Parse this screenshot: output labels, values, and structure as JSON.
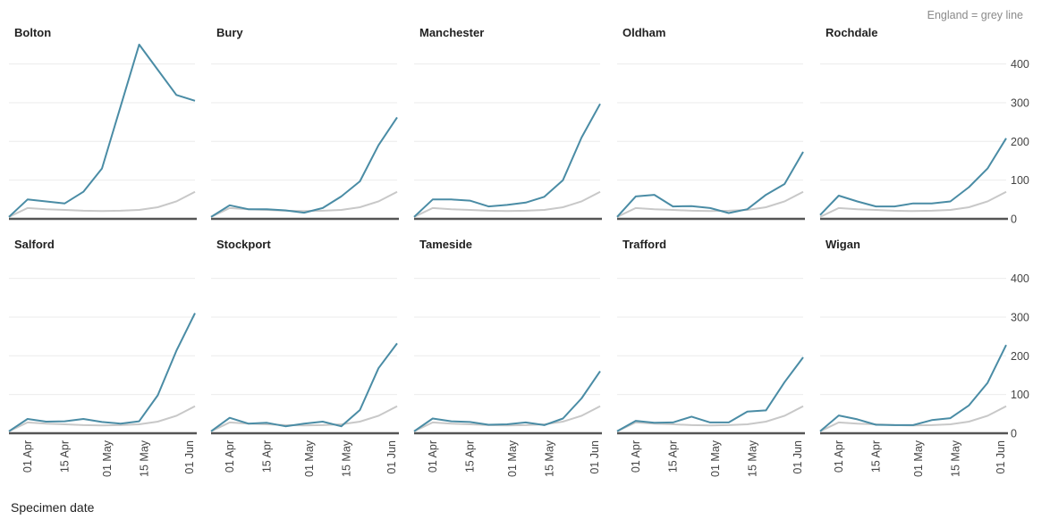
{
  "chart_data": {
    "type": "line",
    "annotation": "England = grey line",
    "xlabel": "Specimen date",
    "ylabel": "",
    "ylim": [
      0,
      450
    ],
    "yticks": [
      0,
      100,
      200,
      300,
      400
    ],
    "xticks": [
      "01 Apr",
      "15 Apr",
      "01 May",
      "15 May",
      "01 Jun"
    ],
    "x": [
      "2020-03-25",
      "2020-04-01",
      "2020-04-08",
      "2020-04-15",
      "2020-04-22",
      "2020-04-29",
      "2020-05-06",
      "2020-05-13",
      "2020-05-20",
      "2020-05-27",
      "2020-06-03"
    ],
    "england_values": [
      5,
      28,
      25,
      23,
      21,
      20,
      21,
      23,
      30,
      45,
      70
    ],
    "grid": true,
    "colors": {
      "area": "#4a8ca5",
      "england": "#c8c8c8",
      "grid": "#ebebeb",
      "baseline": "#555555"
    },
    "panels": [
      {
        "name": "Bolton",
        "values": [
          5,
          50,
          45,
          40,
          70,
          130,
          290,
          450,
          385,
          320,
          305
        ]
      },
      {
        "name": "Bury",
        "values": [
          5,
          35,
          25,
          25,
          22,
          16,
          28,
          58,
          97,
          190,
          262
        ]
      },
      {
        "name": "Manchester",
        "values": [
          5,
          50,
          50,
          47,
          32,
          36,
          42,
          57,
          100,
          210,
          297
        ]
      },
      {
        "name": "Oldham",
        "values": [
          5,
          58,
          62,
          32,
          33,
          28,
          15,
          25,
          62,
          90,
          173
        ]
      },
      {
        "name": "Rochdale",
        "values": [
          10,
          60,
          45,
          32,
          32,
          40,
          40,
          45,
          82,
          130,
          208
        ]
      },
      {
        "name": "Salford",
        "values": [
          5,
          37,
          30,
          31,
          37,
          29,
          25,
          31,
          98,
          213,
          310
        ]
      },
      {
        "name": "Stockport",
        "values": [
          5,
          40,
          25,
          27,
          18,
          25,
          30,
          18,
          60,
          168,
          232
        ]
      },
      {
        "name": "Tameside",
        "values": [
          5,
          38,
          31,
          29,
          22,
          23,
          28,
          21,
          38,
          90,
          160
        ]
      },
      {
        "name": "Trafford",
        "values": [
          5,
          32,
          27,
          28,
          43,
          28,
          28,
          56,
          59,
          132,
          196
        ]
      },
      {
        "name": "Wigan",
        "values": [
          5,
          46,
          36,
          22,
          21,
          21,
          34,
          39,
          72,
          130,
          228
        ]
      }
    ]
  }
}
